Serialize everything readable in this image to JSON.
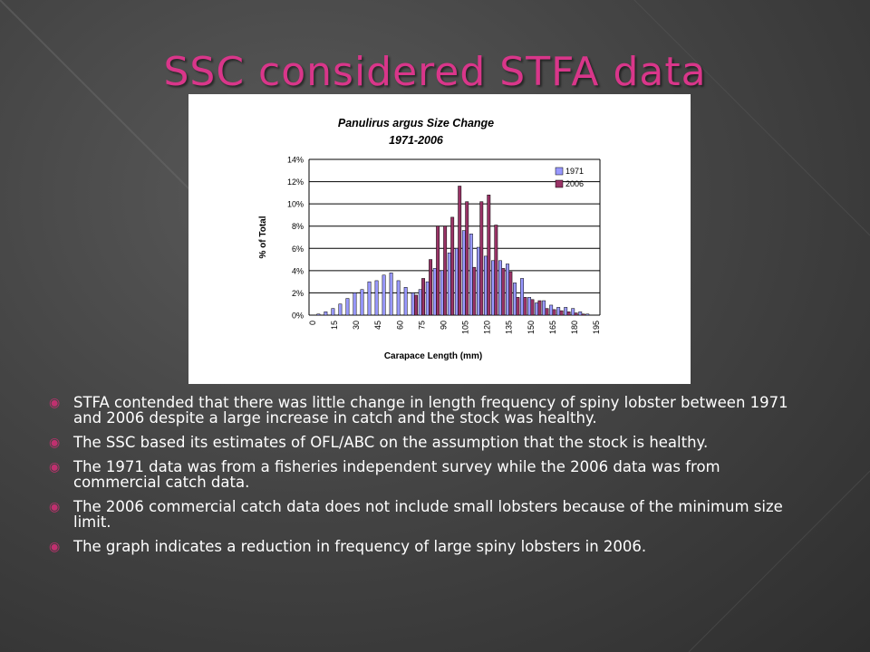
{
  "slide": {
    "title": "SSC considered STFA data",
    "accent_color": "#d9368a",
    "bullet_icon": "circle-bullet-icon"
  },
  "bullets": [
    "STFA contended that there was little change in length frequency of spiny lobster between 1971 and 2006 despite a large increase in catch and the stock was healthy.",
    "The SSC based its estimates of OFL/ABC on the assumption that the stock is healthy.",
    "The 1971 data was from a fisheries independent survey while the 2006 data was from commercial catch data.",
    "The 2006 commercial catch data does not include small lobsters because of the minimum size limit.",
    "The graph indicates a reduction in frequency of large spiny lobsters in 2006."
  ],
  "chart_data": {
    "type": "bar",
    "title": "Panulirus argus Size Change",
    "subtitle": "1971-2006",
    "xlabel": "Carapace Length (mm)",
    "ylabel": "% of Total",
    "x_tick_labels": [
      "0",
      "15",
      "30",
      "45",
      "60",
      "75",
      "90",
      "105",
      "120",
      "135",
      "150",
      "165",
      "180",
      "195"
    ],
    "y_tick_labels": [
      "0%",
      "2%",
      "4%",
      "6%",
      "8%",
      "10%",
      "12%",
      "14%"
    ],
    "ylim": [
      0,
      14
    ],
    "grid": "horizontal",
    "legend_position": "top-right",
    "categories": [
      0,
      5,
      10,
      15,
      20,
      25,
      30,
      35,
      40,
      45,
      50,
      55,
      60,
      65,
      70,
      75,
      80,
      85,
      90,
      95,
      100,
      105,
      110,
      115,
      120,
      125,
      130,
      135,
      140,
      145,
      150,
      155,
      160,
      165,
      170,
      175,
      180,
      185,
      190,
      195
    ],
    "series": [
      {
        "name": "1971",
        "color": "#9999ff",
        "values": [
          0,
          0.1,
          0.3,
          0.6,
          1.0,
          1.5,
          2.0,
          2.3,
          3.0,
          3.1,
          3.6,
          3.8,
          3.1,
          2.5,
          2.0,
          2.3,
          3.0,
          4.2,
          4.0,
          5.6,
          6.0,
          7.6,
          7.3,
          6.1,
          5.3,
          4.9,
          4.9,
          4.6,
          2.9,
          3.3,
          1.6,
          1.1,
          1.3,
          0.9,
          0.7,
          0.7,
          0.6,
          0.3,
          0.1,
          0
        ]
      },
      {
        "name": "2006",
        "color": "#993366",
        "values": [
          0,
          0,
          0,
          0,
          0,
          0,
          0,
          0,
          0,
          0,
          0,
          0,
          0,
          0,
          1.8,
          3.3,
          5.0,
          8.0,
          8.0,
          8.8,
          11.6,
          10.2,
          4.3,
          10.2,
          10.8,
          8.1,
          4.2,
          3.9,
          1.6,
          1.6,
          1.4,
          1.3,
          0.6,
          0.5,
          0.4,
          0.3,
          0.2,
          0.1,
          0,
          0
        ]
      }
    ]
  }
}
